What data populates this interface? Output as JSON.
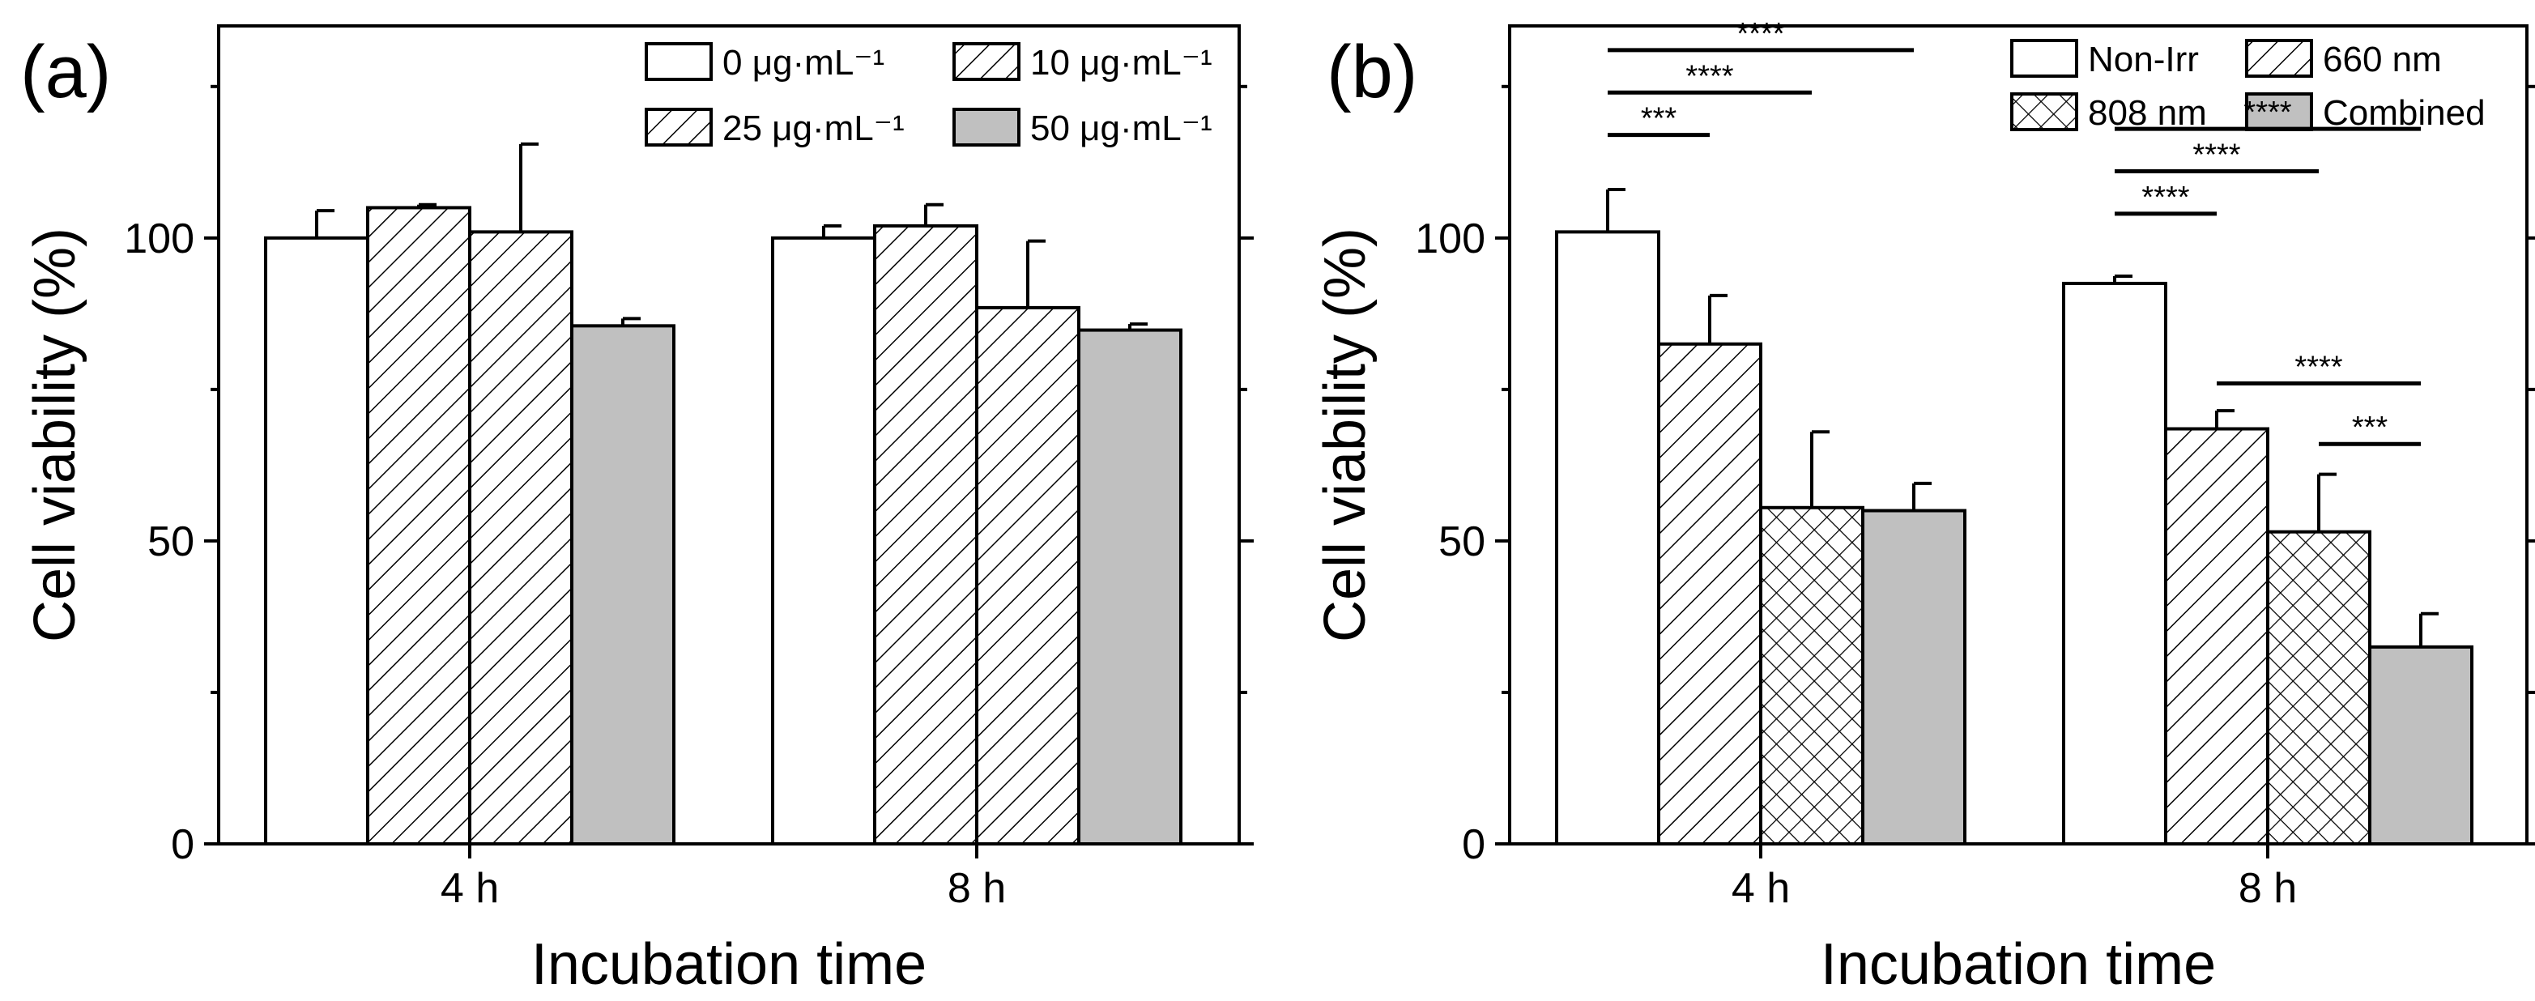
{
  "chart_data": [
    {
      "type": "bar",
      "panel_label": "(a)",
      "xlabel": "Incubation time",
      "ylabel": "Cell viability (%)",
      "ylim": [
        0,
        135
      ],
      "yticks": [
        0,
        50,
        100
      ],
      "categories": [
        "4 h",
        "8 h"
      ],
      "legend_position": "top-right",
      "series": [
        {
          "name": "0 μg·mL⁻¹",
          "pattern": "white",
          "values": [
            100,
            100
          ],
          "errors": [
            4.5,
            2.0
          ]
        },
        {
          "name": "10 μg·mL⁻¹",
          "pattern": "hatch",
          "values": [
            105,
            102
          ],
          "errors": [
            0.5,
            3.5
          ]
        },
        {
          "name": "25 μg·mL⁻¹",
          "pattern": "hatch",
          "values": [
            101,
            88.5
          ],
          "errors": [
            14.5,
            11.0
          ]
        },
        {
          "name": "50 μg·mL⁻¹",
          "pattern": "gray",
          "values": [
            85.5,
            84.8
          ],
          "errors": [
            1.2,
            1.0
          ]
        }
      ],
      "significance": []
    },
    {
      "type": "bar",
      "panel_label": "(b)",
      "xlabel": "Incubation time",
      "ylabel": "Cell viability (%)",
      "ylim": [
        0,
        135
      ],
      "yticks": [
        0,
        50,
        100
      ],
      "categories": [
        "4 h",
        "8 h"
      ],
      "legend_position": "top-right",
      "series": [
        {
          "name": "Non-Irr",
          "pattern": "white",
          "values": [
            101,
            92.5
          ],
          "errors": [
            7.0,
            1.2
          ]
        },
        {
          "name": "660 nm",
          "pattern": "hatch",
          "values": [
            82.5,
            68.5
          ],
          "errors": [
            8.0,
            3.0
          ]
        },
        {
          "name": "808 nm",
          "pattern": "cross",
          "values": [
            55.5,
            51.5
          ],
          "errors": [
            12.5,
            9.5
          ]
        },
        {
          "name": "Combined",
          "pattern": "gray",
          "values": [
            55,
            32.5
          ],
          "errors": [
            4.5,
            5.5
          ]
        }
      ],
      "significance": [
        {
          "category": 0,
          "from": 0,
          "to": 1,
          "level": 117,
          "label": "***"
        },
        {
          "category": 0,
          "from": 0,
          "to": 2,
          "level": 124,
          "label": "****"
        },
        {
          "category": 0,
          "from": 0,
          "to": 3,
          "level": 131,
          "label": "****"
        },
        {
          "category": 1,
          "from": 0,
          "to": 1,
          "level": 104,
          "label": "****"
        },
        {
          "category": 1,
          "from": 0,
          "to": 2,
          "level": 111,
          "label": "****"
        },
        {
          "category": 1,
          "from": 0,
          "to": 3,
          "level": 118,
          "label": "****"
        },
        {
          "category": 1,
          "from": 1,
          "to": 3,
          "level": 76,
          "label": "****"
        },
        {
          "category": 1,
          "from": 2,
          "to": 3,
          "level": 66,
          "label": "***"
        }
      ]
    }
  ]
}
